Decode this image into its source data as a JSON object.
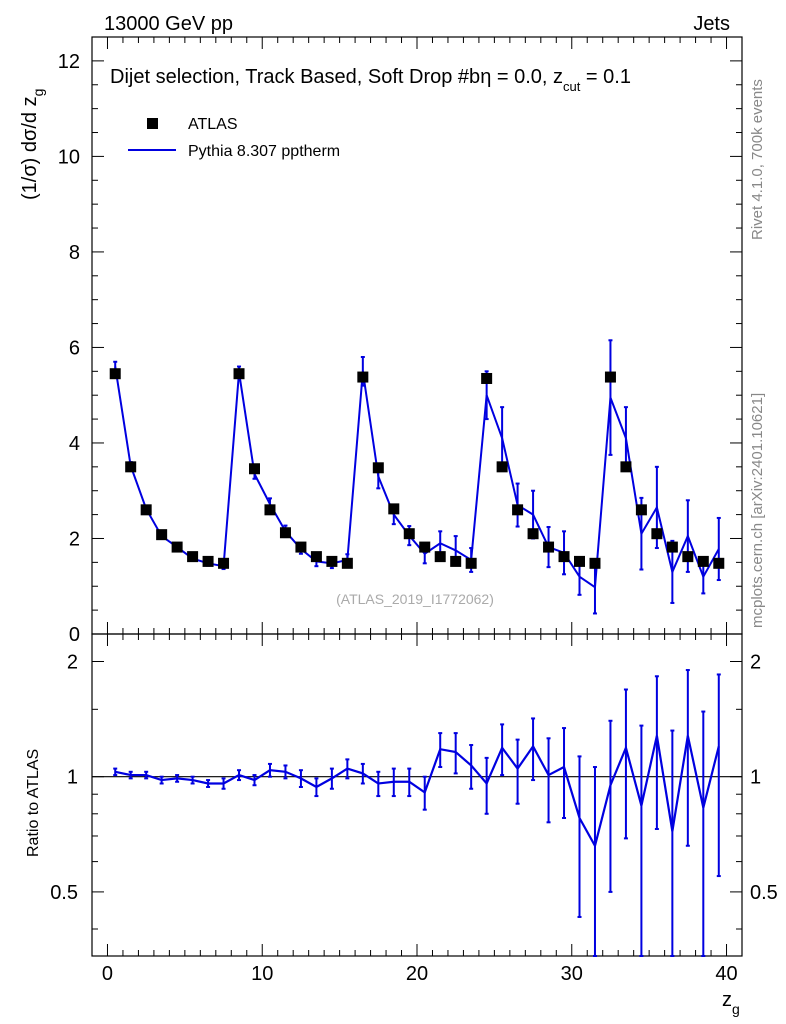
{
  "header": {
    "energy_label": "13000 GeV pp",
    "category": "Jets"
  },
  "side_labels": {
    "rivet": "Rivet 4.1.0,  700k events",
    "mcplots": "mcplots.cern.ch [arXiv:2401.10621]"
  },
  "colors": {
    "atlas": "#000000",
    "pythia": "#0000e0"
  },
  "chart_data": [
    {
      "type": "scatter",
      "panel": "main",
      "title": "Dijet selection, Track Based, Soft Drop #b",
      "title_eta": "η = 0.0, z",
      "title_sub": "cut",
      "title_tail": " = 0.1",
      "watermark": "(ATLAS_2019_I1772062)",
      "ylabel": "(1/σ) dσ/d z",
      "ylabel_sub": "g",
      "xlim": [
        -1,
        41
      ],
      "ylim": [
        0,
        12.5
      ],
      "x_ticks": [
        0,
        10,
        20,
        30,
        40
      ],
      "y_ticks": [
        0,
        2,
        4,
        6,
        8,
        10,
        12
      ],
      "y_tick_labels": [
        "0",
        "2",
        "4",
        "6",
        "8",
        "10",
        "12"
      ],
      "legend": [
        {
          "name": "ATLAS",
          "style": "marker"
        },
        {
          "name": "Pythia 8.307 pptherm",
          "style": "line"
        }
      ],
      "series": [
        {
          "name": "ATLAS",
          "x": [
            0.5,
            1.5,
            2.5,
            3.5,
            4.5,
            5.5,
            6.5,
            7.5,
            8.5,
            9.5,
            10.5,
            11.5,
            12.5,
            13.5,
            14.5,
            15.5,
            16.5,
            17.5,
            18.5,
            19.5,
            20.5,
            21.5,
            22.5,
            23.5,
            24.5,
            25.5,
            26.5,
            27.5,
            28.5,
            29.5,
            30.5,
            31.5,
            32.5,
            33.5,
            34.5,
            35.5,
            36.5,
            37.5,
            38.5,
            39.5
          ],
          "values": [
            5.45,
            3.5,
            2.6,
            2.08,
            1.82,
            1.62,
            1.52,
            1.48,
            5.45,
            3.46,
            2.6,
            2.12,
            1.82,
            1.62,
            1.52,
            1.48,
            5.38,
            3.48,
            2.62,
            2.1,
            1.82,
            1.62,
            1.52,
            1.48,
            5.35,
            3.5,
            2.6,
            2.1,
            1.82,
            1.62,
            1.52,
            1.48,
            5.38,
            3.5,
            2.6,
            2.1,
            1.82,
            1.62,
            1.52,
            1.48
          ]
        },
        {
          "name": "Pythia 8.307 pptherm",
          "x": [
            0.5,
            1.5,
            2.5,
            3.5,
            4.5,
            5.5,
            6.5,
            7.5,
            8.5,
            9.5,
            10.5,
            11.5,
            12.5,
            13.5,
            14.5,
            15.5,
            16.5,
            17.5,
            18.5,
            19.5,
            20.5,
            21.5,
            22.5,
            23.5,
            24.5,
            25.5,
            26.5,
            27.5,
            28.5,
            29.5,
            30.5,
            31.5,
            32.5,
            33.5,
            34.5,
            35.5,
            36.5,
            37.5,
            38.5,
            39.5
          ],
          "values": [
            5.6,
            3.52,
            2.62,
            2.05,
            1.82,
            1.58,
            1.48,
            1.42,
            5.48,
            3.35,
            2.72,
            2.15,
            1.78,
            1.52,
            1.48,
            1.55,
            5.5,
            3.3,
            2.5,
            2.06,
            1.68,
            1.9,
            1.75,
            1.55,
            5.0,
            4.1,
            2.7,
            2.5,
            1.82,
            1.7,
            1.2,
            0.98,
            4.95,
            4.1,
            2.1,
            2.65,
            1.3,
            2.05,
            1.2,
            1.78
          ],
          "errors": [
            0.1,
            0.08,
            0.05,
            0.06,
            0.05,
            0.05,
            0.05,
            0.06,
            0.12,
            0.1,
            0.12,
            0.12,
            0.1,
            0.1,
            0.1,
            0.12,
            0.3,
            0.25,
            0.2,
            0.2,
            0.2,
            0.25,
            0.3,
            0.25,
            0.5,
            0.65,
            0.45,
            0.5,
            0.42,
            0.45,
            0.38,
            0.55,
            1.2,
            0.65,
            0.75,
            0.85,
            0.65,
            0.75,
            0.35,
            0.65
          ]
        }
      ]
    },
    {
      "type": "line",
      "panel": "ratio",
      "ylabel": "Ratio to ATLAS",
      "xlabel": "z",
      "xlabel_sub": "g",
      "xlim": [
        -1,
        41
      ],
      "ylim": [
        0.34,
        2.36
      ],
      "x_ticks": [
        0,
        10,
        20,
        30,
        40
      ],
      "x_tick_labels": [
        "0",
        "10",
        "20",
        "30",
        "40"
      ],
      "y_ticks": [
        0.5,
        1,
        2
      ],
      "y_tick_labels": [
        "0.5",
        "1",
        "2"
      ],
      "reference_line": 1,
      "series": [
        {
          "name": "Pythia 8.307 pptherm",
          "x": [
            0.5,
            1.5,
            2.5,
            3.5,
            4.5,
            5.5,
            6.5,
            7.5,
            8.5,
            9.5,
            10.5,
            11.5,
            12.5,
            13.5,
            14.5,
            15.5,
            16.5,
            17.5,
            18.5,
            19.5,
            20.5,
            21.5,
            22.5,
            23.5,
            24.5,
            25.5,
            26.5,
            27.5,
            28.5,
            29.5,
            30.5,
            31.5,
            32.5,
            33.5,
            34.5,
            35.5,
            36.5,
            37.5,
            38.5,
            39.5
          ],
          "values": [
            1.03,
            1.01,
            1.01,
            0.98,
            0.99,
            0.98,
            0.96,
            0.96,
            1.01,
            0.98,
            1.04,
            1.03,
            0.99,
            0.94,
            0.99,
            1.05,
            1.02,
            0.96,
            0.97,
            0.97,
            0.91,
            1.18,
            1.16,
            1.07,
            0.96,
            1.19,
            1.05,
            1.2,
            1.01,
            1.06,
            0.78,
            0.66,
            0.95,
            1.19,
            0.84,
            1.28,
            0.72,
            1.28,
            0.83,
            1.2
          ],
          "errors": [
            0.02,
            0.02,
            0.02,
            0.02,
            0.02,
            0.02,
            0.02,
            0.03,
            0.03,
            0.03,
            0.04,
            0.04,
            0.05,
            0.05,
            0.06,
            0.06,
            0.06,
            0.07,
            0.08,
            0.08,
            0.09,
            0.12,
            0.14,
            0.14,
            0.16,
            0.18,
            0.2,
            0.22,
            0.25,
            0.28,
            0.35,
            0.4,
            0.45,
            0.5,
            0.52,
            0.55,
            0.6,
            0.62,
            0.65,
            0.65
          ]
        }
      ]
    }
  ]
}
